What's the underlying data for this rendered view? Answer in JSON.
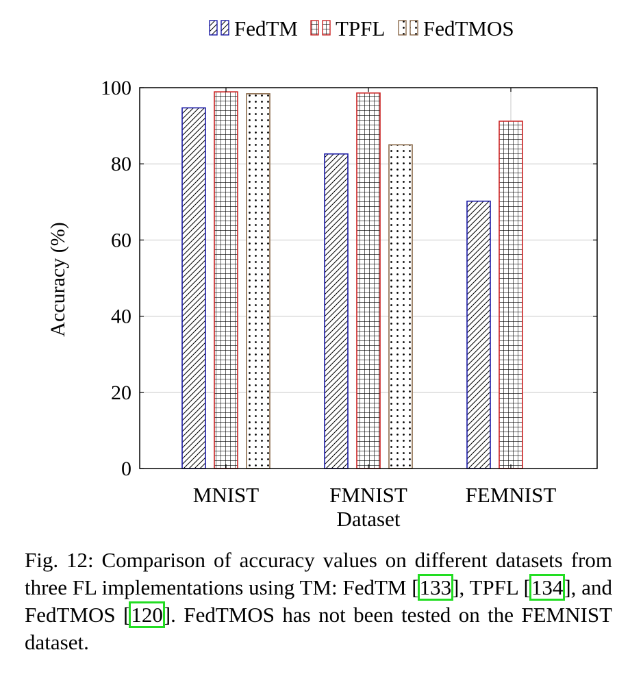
{
  "chart_data": {
    "type": "bar",
    "xlabel": "Dataset",
    "ylabel": "Accuracy (%)",
    "ylim": [
      0,
      100
    ],
    "yticks": [
      0,
      20,
      40,
      60,
      80,
      100
    ],
    "grid": "y-major and category lines",
    "legend_position": "top-center",
    "categories": [
      "MNIST",
      "FMNIST",
      "FEMNIST"
    ],
    "series": [
      {
        "name": "FedTM",
        "values": [
          94.7,
          82.6,
          70.2
        ],
        "color": "#1a1aa6",
        "pattern": "north-east-lines"
      },
      {
        "name": "TPFL",
        "values": [
          98.9,
          98.6,
          91.2
        ],
        "color": "#cc2222",
        "pattern": "grid"
      },
      {
        "name": "FedTMOS",
        "values": [
          98.4,
          85.0,
          null
        ],
        "color": "#8a6a4a",
        "pattern": "dots"
      }
    ]
  },
  "caption": {
    "prefix": "Fig. 12: Comparison of accuracy values on different datasets from three FL implementations using TM: FedTM [",
    "ref1": "133",
    "mid1": "], TPFL [",
    "ref2": "134",
    "mid2": "], and FedTMOS [",
    "ref3": "120",
    "suffix": "]. FedTMOS has not been tested on the FEMNIST dataset."
  }
}
